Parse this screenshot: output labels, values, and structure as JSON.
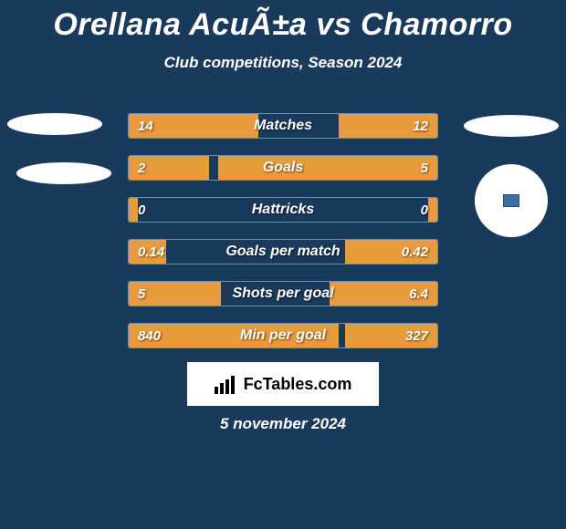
{
  "title": "Orellana AcuÃ±a vs Chamorro",
  "subtitle": "Club competitions, Season 2024",
  "logo_text": "FcTables.com",
  "date_text": "5 november 2024",
  "colors": {
    "background": "#1a3a5c",
    "bar_fill": "#e89b3a",
    "bar_border": "#6b8fb5",
    "text": "#ffffff",
    "logo_bg": "#ffffff",
    "logo_text": "#000000"
  },
  "bars": [
    {
      "label": "Matches",
      "left_val": "14",
      "right_val": "12",
      "left_pct": 42,
      "right_pct": 32
    },
    {
      "label": "Goals",
      "left_val": "2",
      "right_val": "5",
      "left_pct": 26,
      "right_pct": 71
    },
    {
      "label": "Hattricks",
      "left_val": "0",
      "right_val": "0",
      "left_pct": 3,
      "right_pct": 3
    },
    {
      "label": "Goals per match",
      "left_val": "0.14",
      "right_val": "0.42",
      "left_pct": 12,
      "right_pct": 30
    },
    {
      "label": "Shots per goal",
      "left_val": "5",
      "right_val": "6.4",
      "left_pct": 30,
      "right_pct": 35
    },
    {
      "label": "Min per goal",
      "left_val": "840",
      "right_val": "327",
      "left_pct": 68,
      "right_pct": 30
    }
  ]
}
